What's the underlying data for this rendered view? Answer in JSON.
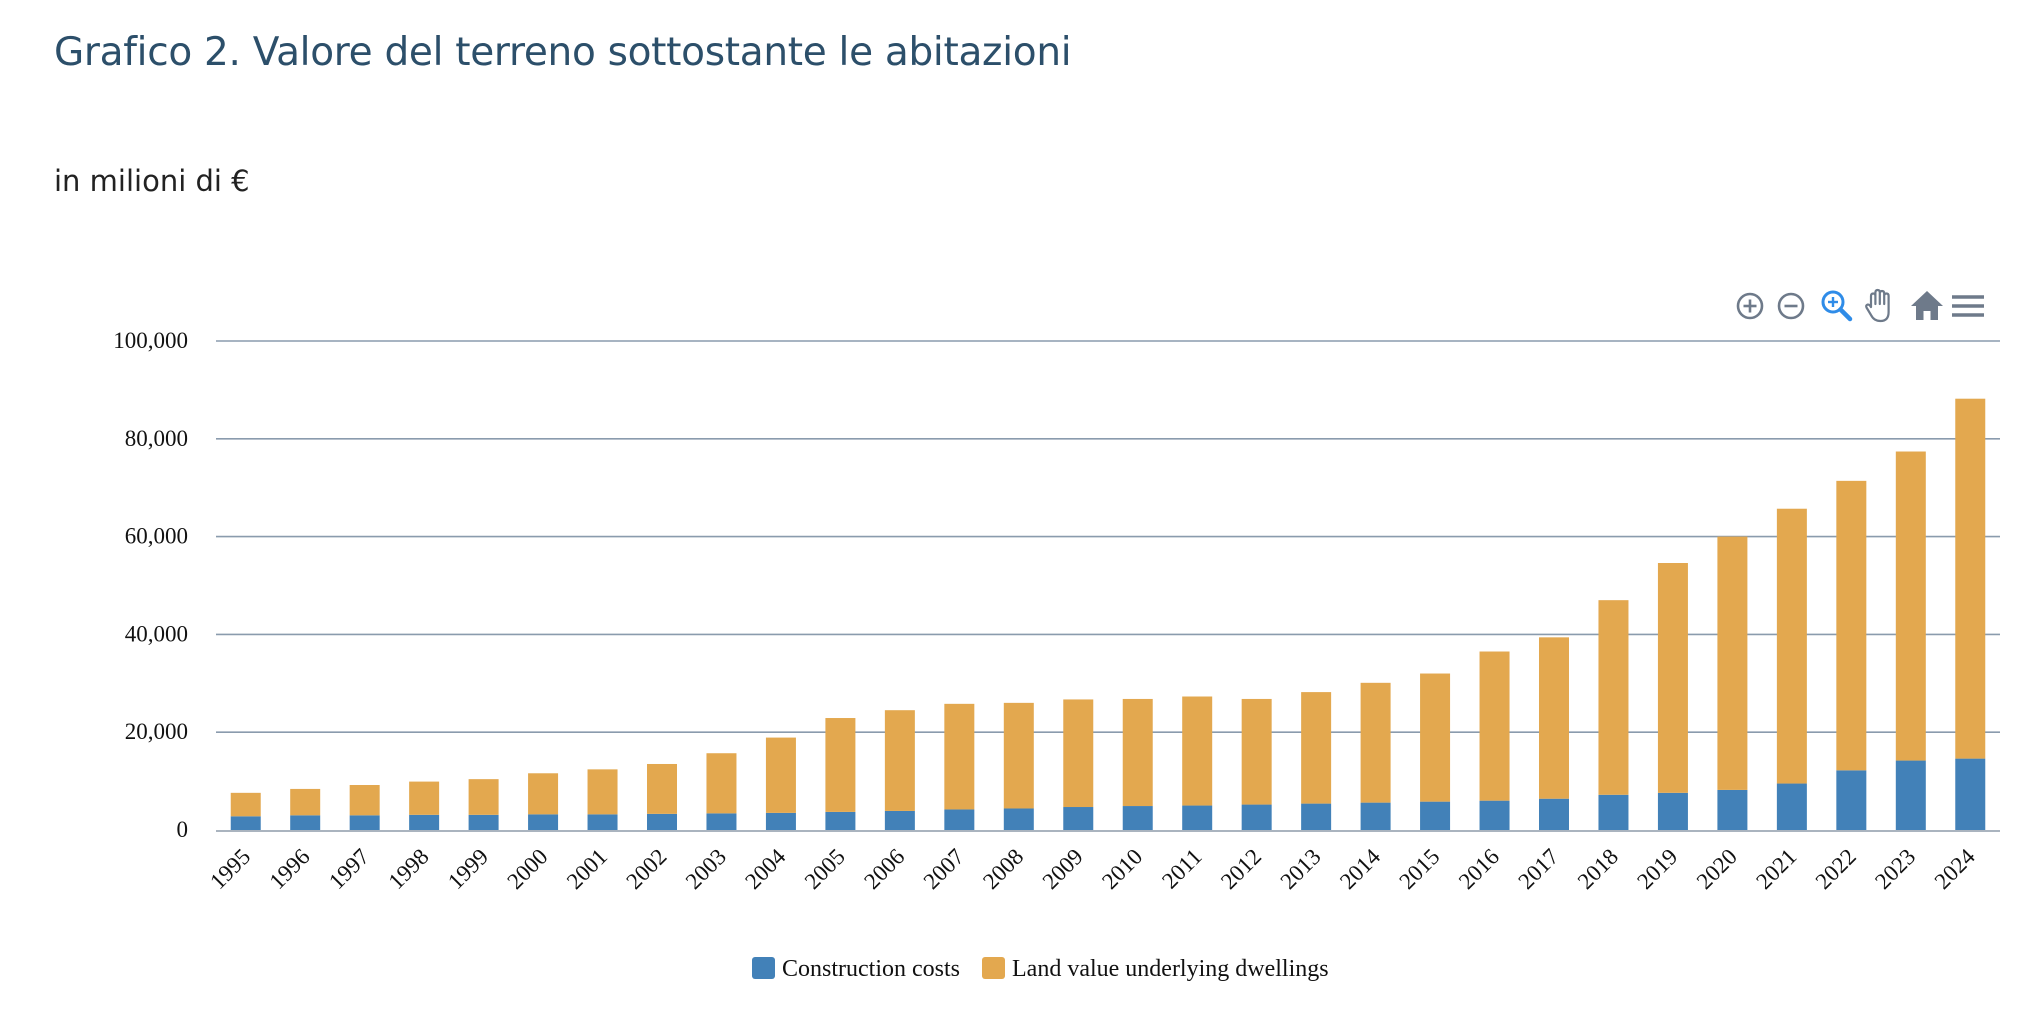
{
  "header": {
    "title": "Grafico 2. Valore del terreno sottostante le abitazioni",
    "subtitle": "in milioni di €"
  },
  "toolbar": {
    "icons": [
      "zoom-in-icon",
      "zoom-out-icon",
      "selection-zoom-icon",
      "pan-hand-icon",
      "home-reset-icon",
      "menu-icon"
    ],
    "icon_color": "#6e7a8a",
    "active_icon_color": "#2f8ce8"
  },
  "chart_data": {
    "type": "bar",
    "stacked": true,
    "title": "Grafico 2. Valore del terreno sottostante le abitazioni",
    "subtitle": "in milioni di €",
    "xlabel": "",
    "ylabel": "",
    "categories": [
      "1995",
      "1996",
      "1997",
      "1998",
      "1999",
      "2000",
      "2001",
      "2002",
      "2003",
      "2004",
      "2005",
      "2006",
      "2007",
      "2008",
      "2009",
      "2010",
      "2011",
      "2012",
      "2013",
      "2014",
      "2015",
      "2016",
      "2017",
      "2018",
      "2019",
      "2020",
      "2021",
      "2022",
      "2023",
      "2024"
    ],
    "series": [
      {
        "name": "Construction costs",
        "color": "#4281b8",
        "values": [
          2800,
          3000,
          3000,
          3100,
          3100,
          3200,
          3200,
          3300,
          3400,
          3500,
          3700,
          3900,
          4200,
          4400,
          4700,
          4900,
          5000,
          5200,
          5400,
          5600,
          5800,
          6000,
          6400,
          7200,
          7600,
          8200,
          9500,
          12200,
          14200,
          14600
        ]
      },
      {
        "name": "Land value underlying dwellings",
        "color": "#e3a84f",
        "values": [
          4800,
          5400,
          6200,
          6800,
          7300,
          8400,
          9200,
          10200,
          12300,
          15400,
          19200,
          20600,
          21600,
          21600,
          22000,
          21900,
          22300,
          21600,
          22800,
          24500,
          26200,
          30500,
          33000,
          39800,
          47000,
          51800,
          56200,
          59200,
          63200,
          73600
        ]
      }
    ],
    "ylim": [
      0,
      100000
    ],
    "yticks": [
      0,
      20000,
      40000,
      60000,
      80000,
      100000
    ],
    "ytick_labels": [
      "0",
      "20,000",
      "40,000",
      "60,000",
      "80,000",
      "100,000"
    ],
    "grid": true,
    "legend_position": "bottom-center"
  }
}
